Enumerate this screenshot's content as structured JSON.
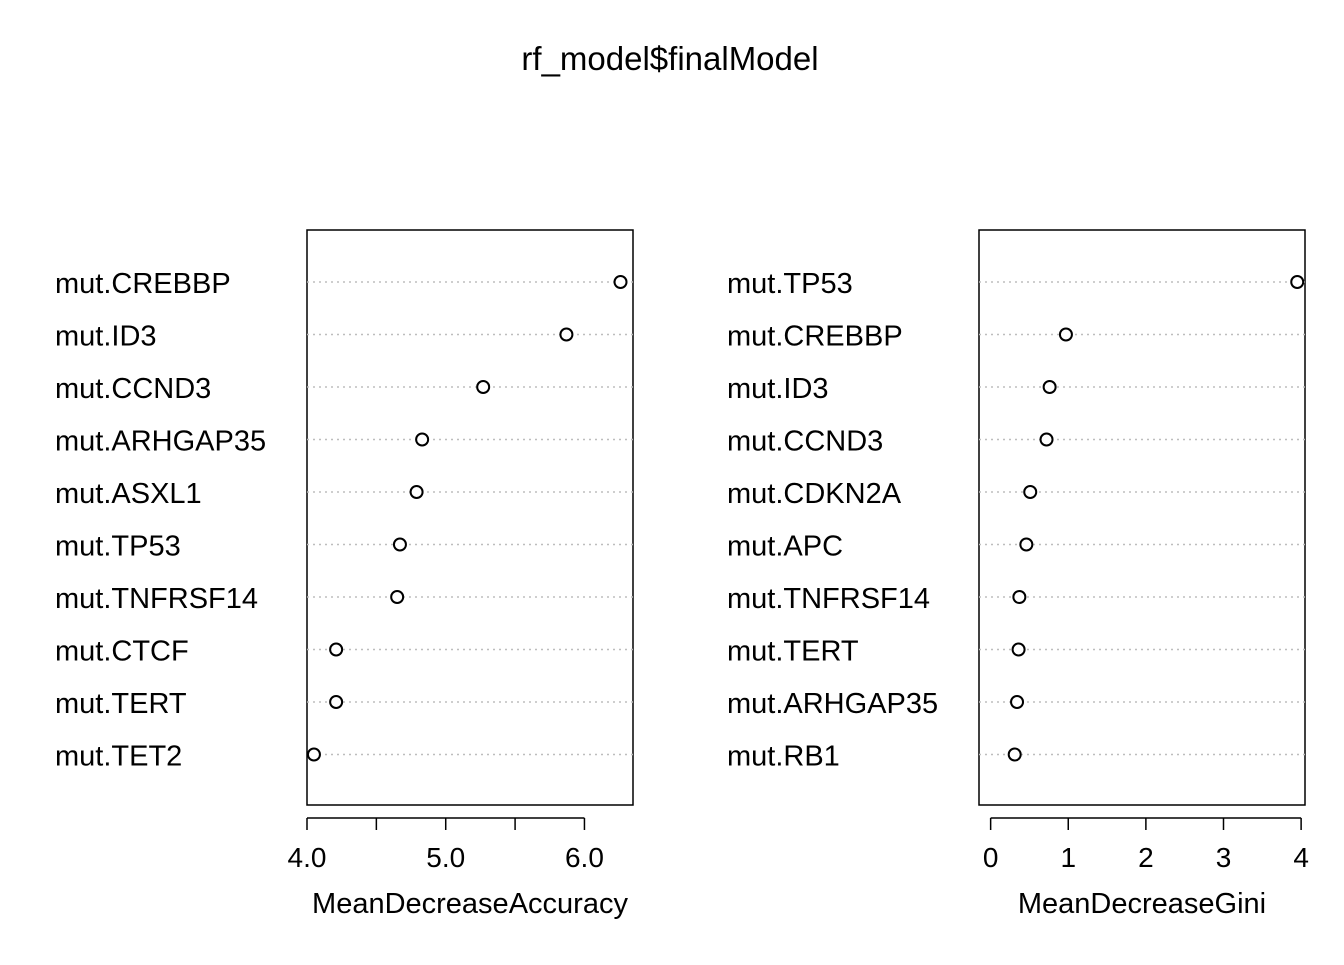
{
  "title": "rf_model$finalModel",
  "chart_data": [
    {
      "type": "scatter",
      "subtype": "dotchart",
      "xlabel": "MeanDecreaseAccuracy",
      "xlim": [
        4.0,
        6.35
      ],
      "xticks": [
        4.0,
        4.5,
        5.0,
        5.5,
        6.0
      ],
      "xtick_labels": [
        "4.0",
        "",
        "5.0",
        "",
        "6.0"
      ],
      "grid": "dotted horizontal",
      "categories": [
        "mut.CREBBP",
        "mut.ID3",
        "mut.CCND3",
        "mut.ARHGAP35",
        "mut.ASXL1",
        "mut.TP53",
        "mut.TNFRSF14",
        "mut.CTCF",
        "mut.TERT",
        "mut.TET2"
      ],
      "values": [
        6.26,
        5.87,
        5.27,
        4.83,
        4.79,
        4.67,
        4.65,
        4.21,
        4.21,
        4.05
      ]
    },
    {
      "type": "scatter",
      "subtype": "dotchart",
      "xlabel": "MeanDecreaseGini",
      "xlim": [
        -0.15,
        4.05
      ],
      "xticks": [
        0,
        1,
        2,
        3,
        4
      ],
      "xtick_labels": [
        "0",
        "1",
        "2",
        "3",
        "4"
      ],
      "grid": "dotted horizontal",
      "categories": [
        "mut.TP53",
        "mut.CREBBP",
        "mut.ID3",
        "mut.CCND3",
        "mut.CDKN2A",
        "mut.APC",
        "mut.TNFRSF14",
        "mut.TERT",
        "mut.ARHGAP35",
        "mut.RB1"
      ],
      "values": [
        3.95,
        0.97,
        0.76,
        0.72,
        0.51,
        0.46,
        0.37,
        0.36,
        0.34,
        0.31
      ]
    }
  ]
}
